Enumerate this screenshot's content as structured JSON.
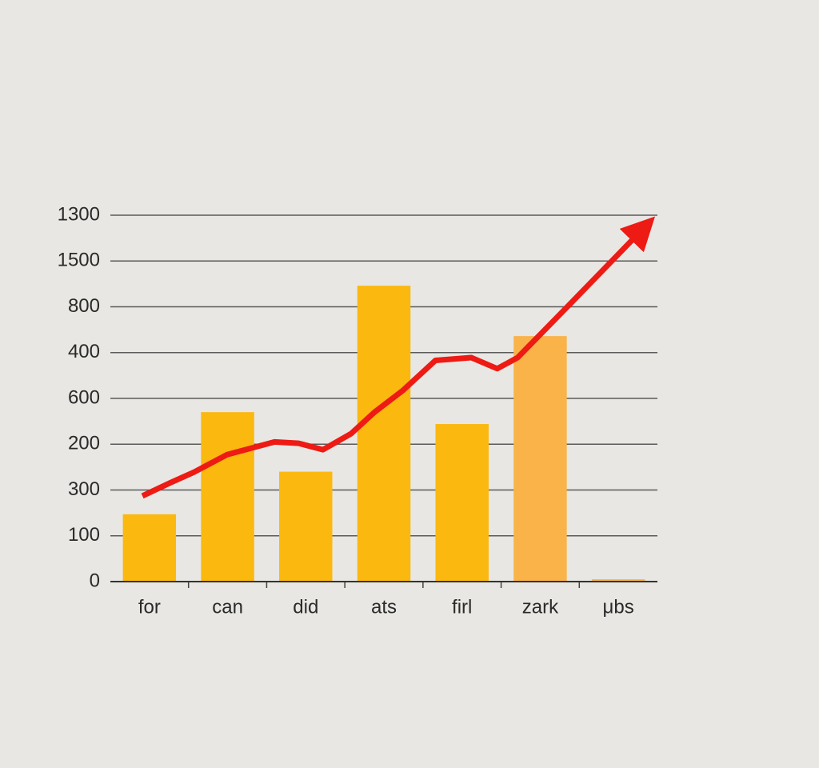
{
  "chart_data": {
    "type": "bar",
    "categories": [
      "for",
      "can",
      "did",
      "ats",
      "firl",
      "zark",
      "μbs"
    ],
    "values": [
      1.47,
      3.7,
      2.4,
      6.46,
      3.44,
      5.36,
      0.05
    ],
    "colors": [
      "#fbb80f",
      "#fbb80f",
      "#fbb80f",
      "#fbb80f",
      "#fbb80f",
      "#f9b349",
      "#f9b349"
    ],
    "ylim": [
      0,
      8
    ],
    "yticks": [
      0,
      {
        "value": 1,
        "label": "100"
      },
      {
        "value": 2,
        "label": "300"
      },
      {
        "value": 3,
        "label": "200"
      },
      {
        "value": 4,
        "label": "600"
      },
      {
        "value": 5,
        "label": "400"
      },
      {
        "value": 6,
        "label": "800"
      },
      {
        "value": 7,
        "label": "1500"
      },
      {
        "value": 8,
        "label": "1300"
      }
    ],
    "grid": true,
    "line": {
      "color": "#ee1a14",
      "x": [
        -0.09,
        0.27,
        0.57,
        0.99,
        1.6,
        1.91,
        2.22,
        2.58,
        2.88,
        3.24,
        3.66,
        4.12,
        4.45,
        4.71,
        5.25,
        6.32
      ],
      "values": [
        1.87,
        2.16,
        2.39,
        2.77,
        3.05,
        3.02,
        2.88,
        3.23,
        3.7,
        4.17,
        4.83,
        4.89,
        4.65,
        4.89,
        5.83,
        7.71
      ]
    }
  }
}
